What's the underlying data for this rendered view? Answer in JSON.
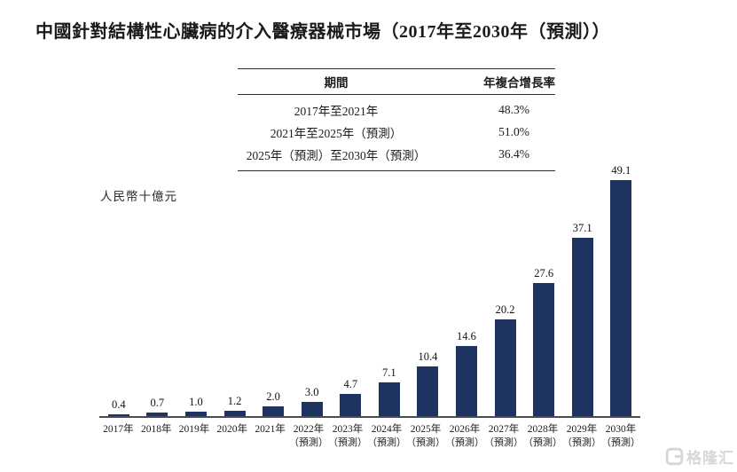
{
  "page": {
    "title": "中國針對結構性心臟病的介入醫療器械市場（2017年至2030年（預測））"
  },
  "table": {
    "headers": {
      "period": "期間",
      "cagr": "年複合增長率"
    },
    "rows": [
      {
        "period": "2017年至2021年",
        "cagr": "48.3%"
      },
      {
        "period": "2021年至2025年（預測）",
        "cagr": "51.0%"
      },
      {
        "period": "2025年（預測）至2030年（預測）",
        "cagr": "36.4%"
      }
    ]
  },
  "chart_data": {
    "type": "bar",
    "title": "中國針對結構性心臟病的介入醫療器械市場（2017年至2030年（預測））",
    "xlabel": "",
    "ylabel": "人民幣十億元",
    "ylim": [
      0,
      50
    ],
    "grid": false,
    "legend": "none",
    "bar_color": "#1f3360",
    "categories": [
      "2017年",
      "2018年",
      "2019年",
      "2020年",
      "2021年",
      "2022年（預測）",
      "2023年（預測）",
      "2024年（預測）",
      "2025年（預測）",
      "2026年（預測）",
      "2027年（預測）",
      "2028年（預測）",
      "2029年（預測）",
      "2030年（預測）"
    ],
    "values": [
      0.4,
      0.7,
      1.0,
      1.2,
      2.0,
      3.0,
      4.7,
      7.1,
      10.4,
      14.6,
      20.2,
      27.6,
      37.1,
      49.1
    ],
    "bars": [
      {
        "year": "2017年",
        "note": "",
        "label": "0.4",
        "value": 0.4
      },
      {
        "year": "2018年",
        "note": "",
        "label": "0.7",
        "value": 0.7
      },
      {
        "year": "2019年",
        "note": "",
        "label": "1.0",
        "value": 1.0
      },
      {
        "year": "2020年",
        "note": "",
        "label": "1.2",
        "value": 1.2
      },
      {
        "year": "2021年",
        "note": "",
        "label": "2.0",
        "value": 2.0
      },
      {
        "year": "2022年",
        "note": "（預測）",
        "label": "3.0",
        "value": 3.0
      },
      {
        "year": "2023年",
        "note": "（預測）",
        "label": "4.7",
        "value": 4.7
      },
      {
        "year": "2024年",
        "note": "（預測）",
        "label": "7.1",
        "value": 7.1
      },
      {
        "year": "2025年",
        "note": "（預測）",
        "label": "10.4",
        "value": 10.4
      },
      {
        "year": "2026年",
        "note": "（預測）",
        "label": "14.6",
        "value": 14.6
      },
      {
        "year": "2027年",
        "note": "（預測）",
        "label": "20.2",
        "value": 20.2
      },
      {
        "year": "2028年",
        "note": "（預測）",
        "label": "27.6",
        "value": 27.6
      },
      {
        "year": "2029年",
        "note": "（預測）",
        "label": "37.1",
        "value": 37.1
      },
      {
        "year": "2030年",
        "note": "（預測）",
        "label": "49.1",
        "value": 49.1
      }
    ]
  },
  "watermark": {
    "text": "格隆汇"
  }
}
